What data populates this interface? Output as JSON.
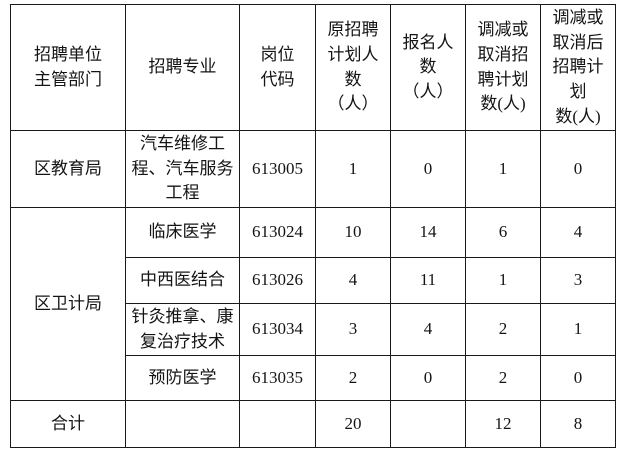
{
  "table": {
    "header": {
      "dept": "招聘单位\n主管部门",
      "major": "招聘专业",
      "code": "岗位\n代码",
      "planned": "原招聘\n计划人\n数\n（人）",
      "applicants": "报名人\n数\n（人）",
      "reduced": "调减或\n取消招\n聘计划\n数(人)",
      "after": "调减或\n取消后\n招聘计\n划\n数(人)"
    },
    "rows": [
      {
        "dept": "区教育局",
        "major": "汽车维修工\n程、汽车服务\n工程",
        "code": "613005",
        "planned": "1",
        "applicants": "0",
        "reduced": "1",
        "after": "0"
      },
      {
        "dept": "区卫计局",
        "major": "临床医学",
        "code": "613024",
        "planned": "10",
        "applicants": "14",
        "reduced": "6",
        "after": "4"
      },
      {
        "major": "中西医结合",
        "code": "613026",
        "planned": "4",
        "applicants": "11",
        "reduced": "1",
        "after": "3"
      },
      {
        "major": "针灸推拿、康\n复治疗技术",
        "code": "613034",
        "planned": "3",
        "applicants": "4",
        "reduced": "2",
        "after": "1"
      },
      {
        "major": "预防医学",
        "code": "613035",
        "planned": "2",
        "applicants": "0",
        "reduced": "2",
        "after": "0"
      }
    ],
    "total": {
      "label": "合计",
      "major": "",
      "code": "",
      "planned": "20",
      "applicants": "",
      "reduced": "12",
      "after": "8"
    },
    "colors": {
      "border": "#1a1a1a",
      "text": "#141414",
      "background": "#ffffff"
    }
  }
}
